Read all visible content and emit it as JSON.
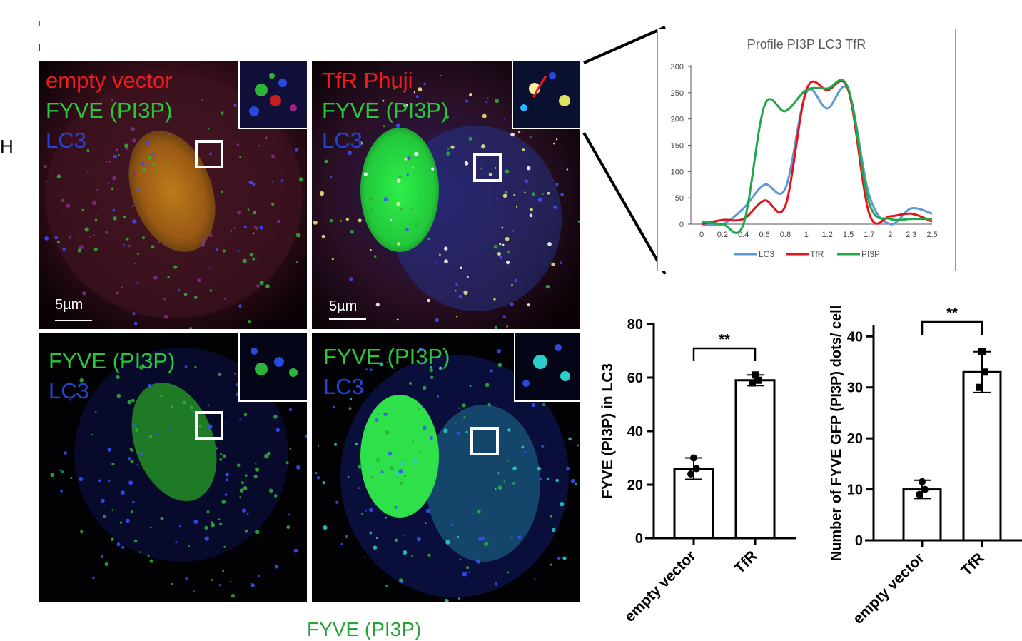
{
  "figure": {
    "edge_label": "H",
    "bottom_label": "FYVE (PI3P)",
    "panels": {
      "top_left": {
        "lines": [
          {
            "text": "empty vector",
            "color": "red"
          },
          {
            "text": "FYVE (PI3P)",
            "color": "green"
          },
          {
            "text": "LC3",
            "color": "blue"
          }
        ],
        "scalebar": "5µm"
      },
      "top_right": {
        "lines": [
          {
            "text": "TfR Phuji",
            "color": "red"
          },
          {
            "text": "FYVE (PI3P)",
            "color": "green"
          },
          {
            "text": "LC3",
            "color": "blue"
          }
        ],
        "scalebar": "5µm"
      },
      "bottom_left": {
        "lines": [
          {
            "text": "FYVE (PI3P)",
            "color": "green"
          },
          {
            "text": "LC3",
            "color": "blue"
          }
        ]
      },
      "bottom_right": {
        "lines": [
          {
            "text": "FYVE (PI3P)",
            "color": "green"
          },
          {
            "text": "LC3",
            "color": "blue"
          }
        ]
      }
    },
    "colors": {
      "red": "#ee1c1c",
      "green": "#27c93a",
      "blue": "#2244d8",
      "lc3_line": "#5b9bd5",
      "tfr_line": "#e8121d",
      "pi3p_line": "#1fa84a"
    }
  },
  "chart_data": [
    {
      "type": "line",
      "title": "Profile PI3P LC3 TfR",
      "x_tick_labels": [
        "0",
        "0.2",
        "0.4",
        "0.6",
        "0.8",
        "1",
        "1.2",
        "1.5",
        "1.7",
        "2",
        "2.3",
        "2.5"
      ],
      "y_ticks": [
        0,
        50,
        100,
        150,
        200,
        250,
        300
      ],
      "ylim": [
        0,
        300
      ],
      "legend_position": "bottom",
      "series": [
        {
          "name": "LC3",
          "values": [
            0,
            0,
            30,
            75,
            68,
            250,
            220,
            255,
            55,
            0,
            30,
            20
          ]
        },
        {
          "name": "TfR",
          "values": [
            0,
            8,
            10,
            45,
            35,
            255,
            255,
            255,
            20,
            15,
            20,
            5
          ]
        },
        {
          "name": "PI3P",
          "values": [
            5,
            0,
            0,
            225,
            215,
            255,
            258,
            258,
            40,
            10,
            10,
            10
          ]
        }
      ]
    },
    {
      "type": "bar",
      "ylabel": "FYVE (PI3P) in LC3",
      "categories": [
        "empty vector",
        "TfR"
      ],
      "values": [
        26,
        59
      ],
      "errors": [
        4,
        2
      ],
      "points": [
        [
          24,
          26,
          30
        ],
        [
          58,
          59,
          61
        ]
      ],
      "y_ticks": [
        0,
        20,
        40,
        60,
        80
      ],
      "ylim": [
        0,
        80
      ],
      "significance": "**"
    },
    {
      "type": "bar",
      "ylabel": "Number of FYVE GFP (PI3P) dots/ cell",
      "categories": [
        "empty vector",
        "TfR"
      ],
      "values": [
        10,
        33
      ],
      "errors": [
        1.8,
        4
      ],
      "points": [
        [
          9,
          10,
          11.5
        ],
        [
          30,
          33,
          37
        ]
      ],
      "y_ticks": [
        0,
        10,
        20,
        30,
        40
      ],
      "ylim": [
        0,
        42
      ],
      "significance": "**"
    }
  ]
}
